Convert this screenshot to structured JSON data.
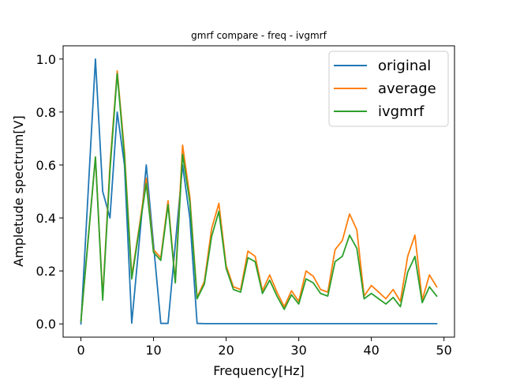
{
  "chart_data": {
    "type": "line",
    "title": "gmrf compare - freq - ivgmrf",
    "xlabel": "Frequency[Hz]",
    "ylabel": "Ampletude spectrum[V]",
    "xlim": [
      -2.45,
      51.45
    ],
    "ylim": [
      -0.05,
      1.05
    ],
    "xticks": [
      0,
      10,
      20,
      30,
      40,
      50
    ],
    "yticks": [
      0.0,
      0.2,
      0.4,
      0.6,
      0.8,
      1.0
    ],
    "xtick_labels": [
      "0",
      "10",
      "20",
      "30",
      "40",
      "50"
    ],
    "ytick_labels": [
      "0.0",
      "0.2",
      "0.4",
      "0.6",
      "0.8",
      "1.0"
    ],
    "grid": false,
    "legend_position": "top-right",
    "x": [
      0,
      1,
      2,
      3,
      4,
      5,
      6,
      7,
      8,
      9,
      10,
      11,
      12,
      13,
      14,
      15,
      16,
      17,
      18,
      19,
      20,
      21,
      22,
      23,
      24,
      25,
      26,
      27,
      28,
      29,
      30,
      31,
      32,
      33,
      34,
      35,
      36,
      37,
      38,
      39,
      40,
      41,
      42,
      43,
      44,
      45,
      46,
      47,
      48,
      49
    ],
    "series": [
      {
        "name": "original",
        "color": "#1f77b4",
        "values": [
          0.0,
          0.5,
          1.0,
          0.5,
          0.4,
          0.8,
          0.6,
          0.003,
          0.3,
          0.6,
          0.3,
          0.002,
          0.002,
          0.3,
          0.6,
          0.4,
          0.002,
          0.001,
          0.001,
          0.001,
          0.001,
          0.001,
          0.001,
          0.001,
          0.001,
          0.001,
          0.001,
          0.001,
          0.001,
          0.001,
          0.001,
          0.001,
          0.001,
          0.001,
          0.001,
          0.001,
          0.001,
          0.001,
          0.001,
          0.001,
          0.001,
          0.001,
          0.001,
          0.001,
          0.001,
          0.001,
          0.001,
          0.001,
          0.001,
          0.001
        ]
      },
      {
        "name": "average",
        "color": "#ff7f0e",
        "values": [
          0.01,
          0.32,
          0.63,
          0.1,
          0.6,
          0.955,
          0.65,
          0.18,
          0.36,
          0.55,
          0.28,
          0.25,
          0.465,
          0.16,
          0.675,
          0.48,
          0.1,
          0.16,
          0.36,
          0.455,
          0.22,
          0.14,
          0.13,
          0.275,
          0.255,
          0.125,
          0.185,
          0.12,
          0.065,
          0.125,
          0.085,
          0.2,
          0.18,
          0.13,
          0.12,
          0.28,
          0.315,
          0.415,
          0.355,
          0.105,
          0.145,
          0.12,
          0.095,
          0.13,
          0.085,
          0.255,
          0.335,
          0.09,
          0.185,
          0.14
        ]
      },
      {
        "name": "ivgmrf",
        "color": "#2ca02c",
        "values": [
          0.01,
          0.32,
          0.63,
          0.09,
          0.58,
          0.945,
          0.63,
          0.17,
          0.35,
          0.53,
          0.27,
          0.24,
          0.45,
          0.155,
          0.64,
          0.46,
          0.095,
          0.15,
          0.33,
          0.425,
          0.21,
          0.13,
          0.12,
          0.25,
          0.235,
          0.115,
          0.165,
          0.105,
          0.055,
          0.11,
          0.075,
          0.17,
          0.155,
          0.115,
          0.105,
          0.235,
          0.255,
          0.335,
          0.285,
          0.095,
          0.115,
          0.095,
          0.075,
          0.1,
          0.065,
          0.195,
          0.255,
          0.08,
          0.14,
          0.105
        ]
      }
    ]
  }
}
